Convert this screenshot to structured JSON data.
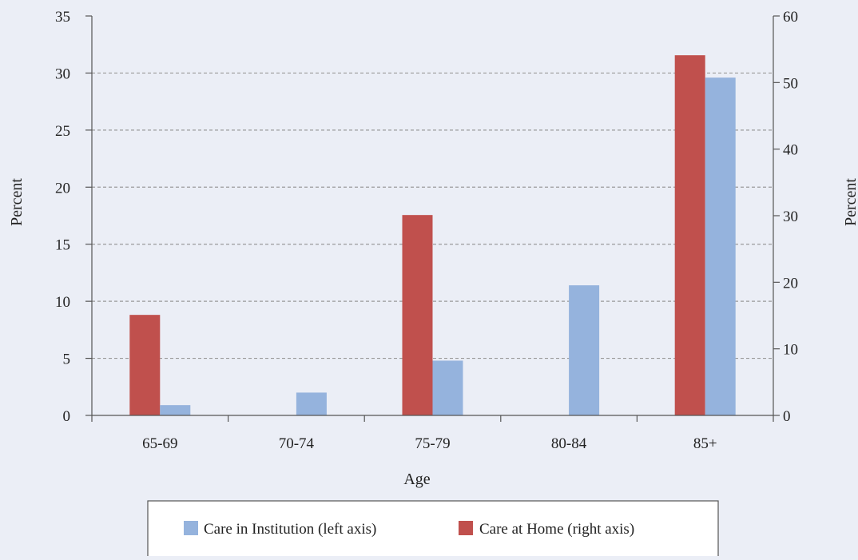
{
  "chart_data": {
    "type": "bar",
    "categories": [
      "65-69",
      "70-74",
      "75-79",
      "80-84",
      "85+"
    ],
    "series": [
      {
        "name": "Care at Home (right axis)",
        "axis": "right",
        "color": "#c0504d",
        "values": [
          15.1,
          0,
          30.1,
          0,
          54.1
        ]
      },
      {
        "name": "Care in Institution (left axis)",
        "axis": "left",
        "color": "#95b3dd",
        "values": [
          0.9,
          2.0,
          4.8,
          11.4,
          29.6
        ]
      }
    ],
    "xlabel": "Age",
    "ylabel_left": "Percent",
    "ylabel_right": "Percent",
    "ylim_left": [
      0,
      35
    ],
    "yticks_left": [
      0,
      5,
      10,
      15,
      20,
      25,
      30,
      35
    ],
    "ylim_right": [
      0,
      60
    ],
    "yticks_right": [
      0,
      10,
      20,
      30,
      40,
      50,
      60
    ],
    "grid": true,
    "legend_position": "bottom",
    "legend_order": [
      "Care in Institution (left axis)",
      "Care at Home (right axis)"
    ]
  }
}
